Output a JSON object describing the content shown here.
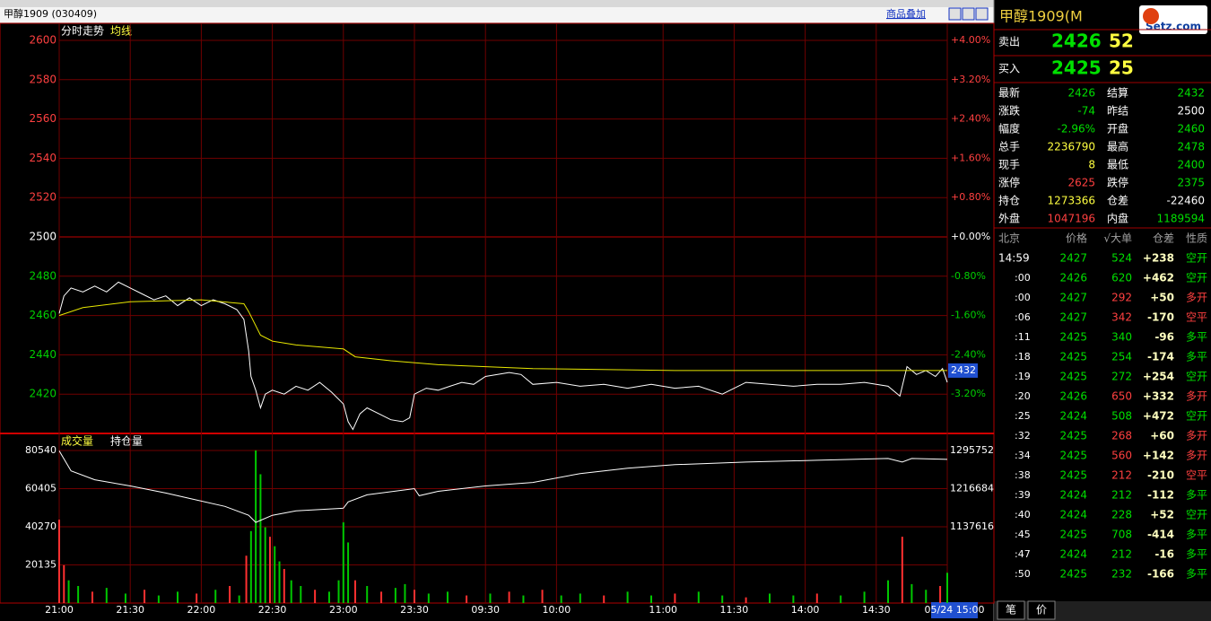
{
  "header": {
    "title": "甲醇1909 (030409)",
    "overlay": "商品叠加",
    "logo": "Setz.com"
  },
  "chart_data": [
    {
      "type": "line",
      "legend": [
        "分时走势",
        "均线"
      ],
      "series": [
        {
          "name": "分时走势",
          "color": "#ffffff",
          "x": [
            0,
            2,
            5,
            10,
            15,
            20,
            25,
            30,
            35,
            40,
            45,
            50,
            55,
            60,
            65,
            70,
            75,
            78,
            80,
            81,
            83,
            85,
            87,
            90,
            95,
            100,
            105,
            110,
            115,
            120,
            122,
            124,
            127,
            130,
            135,
            140,
            145,
            148,
            150,
            155,
            160,
            165,
            170,
            175,
            180,
            190,
            195,
            200,
            210,
            220,
            230,
            240,
            250,
            260,
            270,
            280,
            290,
            300,
            310,
            320,
            330,
            340,
            350,
            355,
            358,
            362,
            366,
            370,
            373,
            375
          ],
          "values": [
            2461,
            2470,
            2474,
            2472,
            2475,
            2472,
            2477,
            2474,
            2471,
            2468,
            2470,
            2465,
            2469,
            2465,
            2468,
            2466,
            2463,
            2458,
            2442,
            2429,
            2422,
            2413,
            2420,
            2422,
            2420,
            2424,
            2422,
            2426,
            2421,
            2415,
            2406,
            2402,
            2410,
            2413,
            2410,
            2407,
            2406,
            2408,
            2420,
            2423,
            2422,
            2424,
            2426,
            2425,
            2429,
            2431,
            2430,
            2425,
            2426,
            2424,
            2425,
            2423,
            2425,
            2423,
            2424,
            2420,
            2426,
            2425,
            2424,
            2425,
            2425,
            2426,
            2424,
            2419,
            2434,
            2430,
            2432,
            2429,
            2433,
            2426
          ]
        },
        {
          "name": "均线",
          "color": "#e8e800",
          "x": [
            0,
            10,
            30,
            60,
            78,
            80,
            85,
            90,
            100,
            120,
            125,
            140,
            160,
            200,
            260,
            375
          ],
          "values": [
            2460,
            2464,
            2467,
            2468,
            2466,
            2462,
            2450,
            2447,
            2445,
            2443,
            2439,
            2437,
            2435,
            2433,
            2432,
            2432
          ]
        }
      ],
      "xlim": [
        0,
        375
      ],
      "ylim": [
        2400,
        2600
      ],
      "yticks": [
        2420,
        2440,
        2460,
        2480,
        2500,
        2520,
        2540,
        2560,
        2580,
        2600
      ],
      "y2lim": [
        -4,
        4
      ],
      "y2ticks": [
        {
          "value": -3.2,
          "label": "-3.20%"
        },
        {
          "value": -2.4,
          "label": "-2.40%"
        },
        {
          "value": -1.6,
          "label": "-1.60%"
        },
        {
          "value": -0.8,
          "label": "-0.80%"
        },
        {
          "value": 0,
          "label": "+0.00%"
        },
        {
          "value": 0.8,
          "label": "+0.80%"
        },
        {
          "value": 1.6,
          "label": "+1.60%"
        },
        {
          "value": 2.4,
          "label": "+2.40%"
        },
        {
          "value": 3.2,
          "label": "+3.20%"
        },
        {
          "value": 4,
          "label": "+4.00%"
        }
      ],
      "price_tag": 2432,
      "grid": true
    },
    {
      "type": "bar",
      "legend": [
        "成交量",
        "持仓量"
      ],
      "series": [
        {
          "name": "成交量",
          "x": [
            0,
            2,
            4,
            8,
            14,
            20,
            28,
            36,
            42,
            50,
            58,
            66,
            72,
            76,
            79,
            81,
            83,
            85,
            87,
            89,
            91,
            93,
            95,
            98,
            102,
            108,
            114,
            118,
            120,
            122,
            125,
            130,
            136,
            142,
            146,
            150,
            156,
            164,
            172,
            182,
            190,
            196,
            204,
            212,
            220,
            230,
            240,
            250,
            260,
            270,
            280,
            290,
            300,
            310,
            320,
            330,
            340,
            350,
            356,
            360,
            366,
            372,
            375
          ],
          "values": [
            44000,
            20000,
            12000,
            9000,
            6000,
            8000,
            5000,
            7000,
            4000,
            6000,
            5000,
            7000,
            9000,
            4000,
            25000,
            38000,
            80540,
            68000,
            40000,
            35000,
            30000,
            22000,
            18000,
            12000,
            9000,
            7000,
            6000,
            12000,
            42600,
            32000,
            12000,
            9000,
            6000,
            8000,
            10000,
            7000,
            5000,
            6000,
            4000,
            5000,
            6000,
            4000,
            7000,
            4000,
            5000,
            4000,
            6000,
            4000,
            5000,
            6000,
            4000,
            3000,
            5000,
            4000,
            5000,
            4000,
            6000,
            12000,
            35000,
            10000,
            7000,
            9000,
            16000
          ],
          "colors": [
            "#ff3030",
            "#ff3030",
            "#00c800",
            "#00c800",
            "#ff3030",
            "#00c800",
            "#00c800",
            "#ff3030",
            "#00c800",
            "#00c800",
            "#ff3030",
            "#00c800",
            "#ff3030",
            "#00c800",
            "#ff3030",
            "#00c800",
            "#00c800",
            "#00c800",
            "#00c800",
            "#ff3030",
            "#00c800",
            "#00c800",
            "#ff3030",
            "#00c800",
            "#00c800",
            "#ff3030",
            "#00c800",
            "#00c800",
            "#00c800",
            "#00c800",
            "#ff3030",
            "#00c800",
            "#ff3030",
            "#00c800",
            "#00c800",
            "#ff3030",
            "#00c800",
            "#00c800",
            "#ff3030",
            "#00c800",
            "#ff3030",
            "#00c800",
            "#ff3030",
            "#00c800",
            "#00c800",
            "#ff3030",
            "#00c800",
            "#00c800",
            "#ff3030",
            "#00c800",
            "#00c800",
            "#ff3030",
            "#00c800",
            "#00c800",
            "#ff3030",
            "#00c800",
            "#00c800",
            "#00c800",
            "#ff3030",
            "#00c800",
            "#00c800",
            "#ff3030",
            "#00c800"
          ]
        },
        {
          "name": "持仓量",
          "type": "line",
          "axis": "y2",
          "color": "#ffffff",
          "x": [
            0,
            5,
            15,
            30,
            45,
            55,
            70,
            80,
            83,
            90,
            100,
            120,
            122,
            130,
            150,
            152,
            160,
            180,
            200,
            220,
            240,
            260,
            290,
            320,
            350,
            356,
            360,
            375
          ],
          "values": [
            1295000,
            1253455,
            1235065,
            1222192,
            1207480,
            1196446,
            1179895,
            1161505,
            1146793,
            1161505,
            1170700,
            1176217,
            1189090,
            1203802,
            1216675,
            1201963,
            1211158,
            1222192,
            1229548,
            1247938,
            1258972,
            1266328,
            1271845,
            1275523,
            1279201,
            1271845,
            1279201,
            1277362
          ]
        }
      ],
      "xlim": [
        0,
        375
      ],
      "ylim": [
        0,
        80540
      ],
      "yticks": [
        20135,
        40270,
        60405,
        80540
      ],
      "y2lim": [
        979480,
        1295752
      ],
      "y2ticks": [
        1137616,
        1216684,
        1295752
      ],
      "xticks": [
        {
          "value": 0,
          "label": "21:00"
        },
        {
          "value": 30,
          "label": "21:30"
        },
        {
          "value": 60,
          "label": "22:00"
        },
        {
          "value": 90,
          "label": "22:30"
        },
        {
          "value": 120,
          "label": "23:00"
        },
        {
          "value": 150,
          "label": "23:30"
        },
        {
          "value": 180,
          "label": "09:30"
        },
        {
          "value": 210,
          "label": "10:00"
        },
        {
          "value": 255,
          "label": "11:00"
        },
        {
          "value": 285,
          "label": "11:30"
        },
        {
          "value": 315,
          "label": "14:00"
        },
        {
          "value": 345,
          "label": "14:30"
        },
        {
          "value": 375,
          "label": "05/24 15:00"
        }
      ]
    }
  ],
  "quote": {
    "title": "甲醇1909(M",
    "ask": {
      "label": "卖出",
      "price": 2426,
      "volume": 52
    },
    "bid": {
      "label": "买入",
      "price": 2425,
      "volume": 25
    },
    "stats": [
      {
        "label": "最新",
        "value": 2426,
        "color": "#00e000"
      },
      {
        "label": "结算",
        "value": 2432,
        "color": "#00e000"
      },
      {
        "label": "涨跌",
        "value": -74,
        "color": "#00e000"
      },
      {
        "label": "昨结",
        "value": 2500,
        "color": "#ffffff"
      },
      {
        "label": "幅度",
        "value": "-2.96%",
        "color": "#00e000"
      },
      {
        "label": "开盘",
        "value": 2460,
        "color": "#00e000"
      },
      {
        "label": "总手",
        "value": 2236790,
        "color": "#ffff40"
      },
      {
        "label": "最高",
        "value": 2478,
        "color": "#00e000"
      },
      {
        "label": "现手",
        "value": 8,
        "color": "#ffff40"
      },
      {
        "label": "最低",
        "value": 2400,
        "color": "#00e000"
      },
      {
        "label": "涨停",
        "value": 2625,
        "color": "#ff4040"
      },
      {
        "label": "跌停",
        "value": 2375,
        "color": "#00e000"
      },
      {
        "label": "持仓",
        "value": 1273366,
        "color": "#ffff40"
      },
      {
        "label": "仓差",
        "value": -22460,
        "color": "#ffffff"
      },
      {
        "label": "外盘",
        "value": 1047196,
        "color": "#ff4040"
      },
      {
        "label": "内盘",
        "value": 1189594,
        "color": "#00e000"
      }
    ]
  },
  "trades": {
    "header": [
      "北京",
      "价格",
      "√大单",
      "仓差",
      "性质"
    ],
    "rows": [
      {
        "time": "14:59",
        "price": 2427,
        "volume": 524,
        "change": "+238",
        "type": "空开",
        "color": "#00e000"
      },
      {
        "time": ":00",
        "price": 2426,
        "volume": 620,
        "change": "+462",
        "type": "空开",
        "color": "#00e000"
      },
      {
        "time": ":00",
        "price": 2427,
        "volume": 292,
        "change": "+50",
        "type": "多开",
        "color": "#ff4040"
      },
      {
        "time": ":06",
        "price": 2427,
        "volume": 342,
        "change": "-170",
        "type": "空平",
        "color": "#ff4040"
      },
      {
        "time": ":11",
        "price": 2425,
        "volume": 340,
        "change": "-96",
        "type": "多平",
        "color": "#00e000"
      },
      {
        "time": ":18",
        "price": 2425,
        "volume": 254,
        "change": "-174",
        "type": "多平",
        "color": "#00e000"
      },
      {
        "time": ":19",
        "price": 2425,
        "volume": 272,
        "change": "+254",
        "type": "空开",
        "color": "#00e000"
      },
      {
        "time": ":20",
        "price": 2426,
        "volume": 650,
        "change": "+332",
        "type": "多开",
        "color": "#ff4040"
      },
      {
        "time": ":25",
        "price": 2424,
        "volume": 508,
        "change": "+472",
        "type": "空开",
        "color": "#00e000"
      },
      {
        "time": ":32",
        "price": 2425,
        "volume": 268,
        "change": "+60",
        "type": "多开",
        "color": "#ff4040"
      },
      {
        "time": ":34",
        "price": 2425,
        "volume": 560,
        "change": "+142",
        "type": "多开",
        "color": "#ff4040"
      },
      {
        "time": ":38",
        "price": 2425,
        "volume": 212,
        "change": "-210",
        "type": "空平",
        "color": "#ff4040"
      },
      {
        "time": ":39",
        "price": 2424,
        "volume": 212,
        "change": "-112",
        "type": "多平",
        "color": "#00e000"
      },
      {
        "time": ":40",
        "price": 2424,
        "volume": 228,
        "change": "+52",
        "type": "空开",
        "color": "#00e000"
      },
      {
        "time": ":45",
        "price": 2425,
        "volume": 708,
        "change": "-414",
        "type": "多平",
        "color": "#00e000"
      },
      {
        "time": ":47",
        "price": 2424,
        "volume": 212,
        "change": "-16",
        "type": "多平",
        "color": "#00e000"
      },
      {
        "time": ":50",
        "price": 2425,
        "volume": 232,
        "change": "-166",
        "type": "多平",
        "color": "#00e000"
      }
    ]
  },
  "tabs": [
    "笔",
    "价"
  ]
}
